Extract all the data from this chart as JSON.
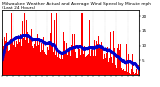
{
  "title": "Milwaukee Weather Actual and Average Wind Speed by Minute mph (Last 24 Hours)",
  "n_points": 1440,
  "bar_color": "#ff0000",
  "avg_color": "#0000cc",
  "bg_color": "#ffffff",
  "ylim": [
    0,
    22
  ],
  "yticks": [
    5,
    10,
    15,
    20
  ],
  "ytick_labels": [
    "5",
    "10",
    "15",
    "20"
  ],
  "grid_color": "#bbbbbb",
  "title_fontsize": 3.2,
  "tick_fontsize": 3.0,
  "seed": 42
}
